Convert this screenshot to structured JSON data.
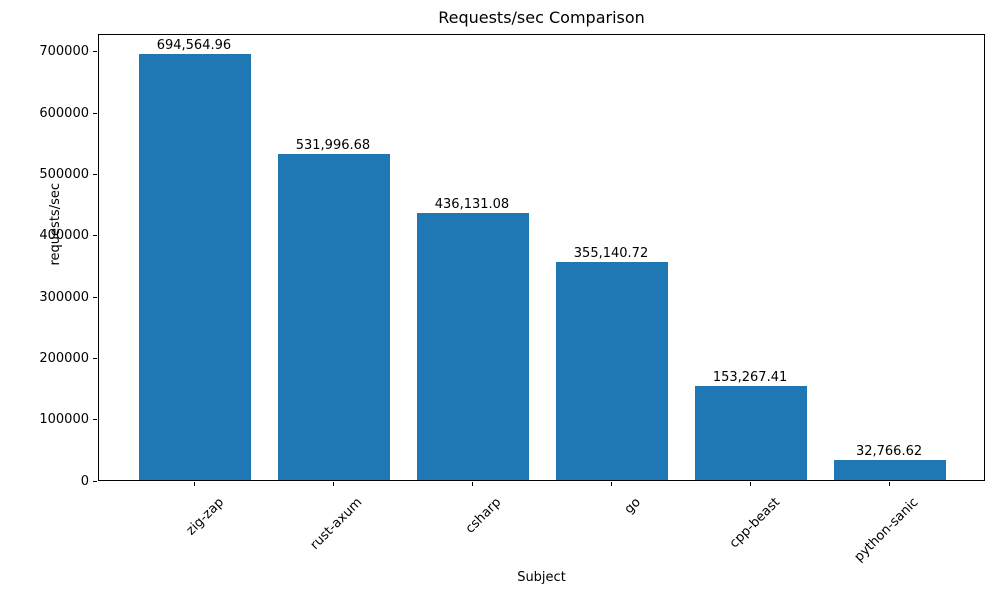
{
  "chart_data": {
    "type": "bar",
    "title": "Requests/sec Comparison",
    "xlabel": "Subject",
    "ylabel": "requests/sec",
    "categories": [
      "zig-zap",
      "rust-axum",
      "csharp",
      "go",
      "cpp-beast",
      "python-sanic"
    ],
    "values": [
      694564.96,
      531996.68,
      436131.08,
      355140.72,
      153267.41,
      32766.62
    ],
    "value_labels": [
      "694,564.96",
      "531,996.68",
      "436,131.08",
      "355,140.72",
      "153,267.41",
      "32,766.62"
    ],
    "bar_color": "#1f77b4",
    "ylim": [
      0,
      729293
    ],
    "yticks": [
      0,
      100000,
      200000,
      300000,
      400000,
      500000,
      600000,
      700000
    ],
    "ytick_labels": [
      "0",
      "100000",
      "200000",
      "300000",
      "400000",
      "500000",
      "600000",
      "700000"
    ],
    "x_tick_rotation": 45,
    "grid": false,
    "legend": null
  }
}
